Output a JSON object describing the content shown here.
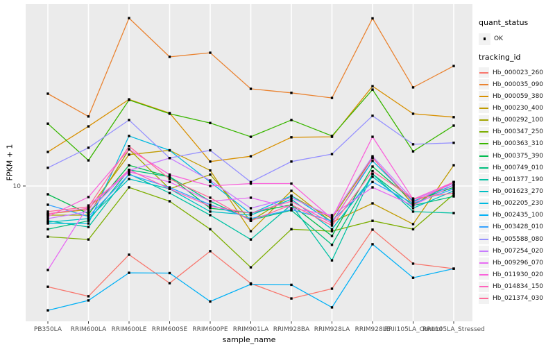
{
  "chart_data": {
    "type": "line",
    "title": "",
    "xlabel": "sample_name",
    "ylabel": "FPKM + 1",
    "y_scale": "log10",
    "y_ticks": [
      {
        "value": 10,
        "label": "10"
      }
    ],
    "grid": {
      "vertical_at_categories": true,
      "horizontal_at": [
        10
      ],
      "color": "#FFFFFF"
    },
    "legend_position": "right",
    "legend": {
      "quant_status_title": "quant_status",
      "quant_status_items": [
        {
          "label": "OK",
          "marker": "point"
        }
      ],
      "tracking_id_title": "tracking_id"
    },
    "point_marker": {
      "shape": "square",
      "color": "#000000",
      "size": 3.4
    },
    "categories": [
      "PB350LA",
      "RRIM600LA",
      "RRIM600LE",
      "RRIM600SE",
      "RRIM600PE",
      "RRIM901LA",
      "RRIM928BA",
      "RRIM928LA",
      "RRIM928LE",
      "RRII105LA_Control",
      "RRII105LA_Stressed"
    ],
    "series": [
      {
        "name": "Hb_000023_260",
        "color": "#F8766D",
        "values": [
          2.9,
          2.58,
          4.3,
          3.03,
          4.49,
          3.02,
          2.51,
          2.83,
          5.85,
          3.85,
          3.62
        ]
      },
      {
        "name": "Hb_000035_090",
        "color": "#EA8331",
        "values": [
          31.1,
          23.5,
          78.7,
          48.9,
          51.4,
          33.0,
          31.4,
          29.5,
          78.4,
          33.6,
          43.7
        ]
      },
      {
        "name": "Hb_000059_380",
        "color": "#D89000",
        "values": [
          15.2,
          20.8,
          29.0,
          24.5,
          13.5,
          14.4,
          18.2,
          18.3,
          34.1,
          24.3,
          23.3
        ]
      },
      {
        "name": "Hb_000230_400",
        "color": "#C09B00",
        "values": [
          7.11,
          7.48,
          14.7,
          15.5,
          12.1,
          5.74,
          9.42,
          6.41,
          8.08,
          6.26,
          12.9
        ]
      },
      {
        "name": "Hb_000292_100",
        "color": "#A3A500",
        "values": [
          6.99,
          6.99,
          15.7,
          9.66,
          11.5,
          6.52,
          8.87,
          6.7,
          14.2,
          7.94,
          10.5
        ]
      },
      {
        "name": "Hb_000347_250",
        "color": "#7CAE00",
        "values": [
          5.36,
          5.18,
          9.83,
          8.29,
          5.88,
          3.68,
          5.88,
          5.74,
          6.52,
          5.88,
          9.03
        ]
      },
      {
        "name": "Hb_000363_310",
        "color": "#39B600",
        "values": [
          21.5,
          13.7,
          28.8,
          24.3,
          21.7,
          18.3,
          22.5,
          18.5,
          32.7,
          15.3,
          21.0
        ]
      },
      {
        "name": "Hb_000375_390",
        "color": "#00BB4E",
        "values": [
          9.03,
          7.11,
          12.9,
          11.2,
          7.61,
          7.17,
          7.94,
          5.41,
          12.7,
          8.29,
          9.83
        ]
      },
      {
        "name": "Hb_000749_010",
        "color": "#00BF7D",
        "values": [
          5.88,
          6.52,
          12.2,
          11.2,
          8.29,
          6.58,
          7.42,
          4.85,
          11.6,
          7.87,
          8.8
        ]
      },
      {
        "name": "Hb_001377_190",
        "color": "#00C1A3",
        "values": [
          6.52,
          6.04,
          11.6,
          9.17,
          6.99,
          5.18,
          7.94,
          4.01,
          11.6,
          7.3,
          7.17
        ]
      },
      {
        "name": "Hb_001623_270",
        "color": "#00BFC4",
        "values": [
          6.41,
          6.7,
          10.9,
          9.66,
          7.3,
          6.99,
          8.5,
          5.88,
          11.2,
          7.61,
          9.42
        ]
      },
      {
        "name": "Hb_002205_230",
        "color": "#00BAE0",
        "values": [
          6.31,
          6.31,
          18.5,
          15.5,
          10.5,
          7.11,
          8.87,
          6.41,
          13.6,
          8.29,
          10.1
        ]
      },
      {
        "name": "Hb_002435_100",
        "color": "#00B0F6",
        "values": [
          2.17,
          2.45,
          3.44,
          3.43,
          2.42,
          2.99,
          2.97,
          2.25,
          4.89,
          3.24,
          3.62
        ]
      },
      {
        "name": "Hb_003428_010",
        "color": "#35A2FF",
        "values": [
          7.94,
          6.87,
          11.5,
          9.83,
          7.94,
          6.7,
          7.48,
          6.52,
          10.5,
          8.08,
          9.66
        ]
      },
      {
        "name": "Hb_005588_080",
        "color": "#9590FF",
        "values": [
          12.5,
          16.0,
          22.5,
          14.1,
          15.5,
          10.5,
          13.5,
          14.8,
          23.7,
          16.7,
          17.0
        ]
      },
      {
        "name": "Hb_007254_020",
        "color": "#C77CFF",
        "values": [
          6.7,
          7.3,
          12.1,
          14.1,
          10.7,
          7.61,
          8.66,
          6.87,
          14.4,
          8.43,
          10.3
        ]
      },
      {
        "name": "Hb_009296_070",
        "color": "#E76BF3",
        "values": [
          3.56,
          7.87,
          11.9,
          10.5,
          8.29,
          8.66,
          7.61,
          6.99,
          9.83,
          7.87,
          10.1
        ]
      },
      {
        "name": "Hb_011930_020",
        "color": "#FA62DB",
        "values": [
          6.87,
          8.73,
          15.7,
          11.5,
          10.0,
          10.3,
          10.3,
          6.7,
          18.3,
          8.5,
          10.5
        ]
      },
      {
        "name": "Hb_014834_150",
        "color": "#FF62BC",
        "values": [
          7.11,
          7.61,
          12.2,
          9.66,
          7.8,
          7.17,
          8.29,
          6.31,
          14.1,
          8.15,
          10.5
        ]
      },
      {
        "name": "Hb_021374_030",
        "color": "#FF6A98",
        "values": [
          7.3,
          7.74,
          16.3,
          10.9,
          8.66,
          6.52,
          7.94,
          6.15,
          12.0,
          8.57,
          9.17
        ]
      }
    ],
    "style": {
      "panel_background": "#EBEBEB",
      "gridline_color": "#FFFFFF",
      "tick_color": "#333333",
      "axis_text_color": "#4D4D4D",
      "title_text_color": "#000000",
      "legend_key_background": "#F2F2F2"
    }
  }
}
